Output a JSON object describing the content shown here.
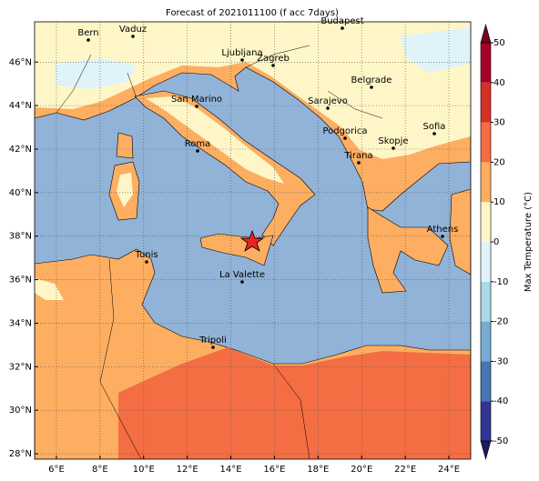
{
  "chart_data": {
    "type": "map",
    "title": "Forecast of 2021011100 (f acc 7days)",
    "xlim": [
      5,
      25
    ],
    "ylim": [
      27.75,
      47.85
    ],
    "xticks": [
      {
        "value": 6,
        "label": "6°E"
      },
      {
        "value": 8,
        "label": "8°E"
      },
      {
        "value": 10,
        "label": "10°E"
      },
      {
        "value": 12,
        "label": "12°E"
      },
      {
        "value": 14,
        "label": "14°E"
      },
      {
        "value": 16,
        "label": "16°E"
      },
      {
        "value": 18,
        "label": "18°E"
      },
      {
        "value": 20,
        "label": "20°E"
      },
      {
        "value": 22,
        "label": "22°E"
      },
      {
        "value": 24,
        "label": "24°E"
      }
    ],
    "yticks": [
      {
        "value": 28,
        "label": "28°N"
      },
      {
        "value": 30,
        "label": "30°N"
      },
      {
        "value": 32,
        "label": "32°N"
      },
      {
        "value": 34,
        "label": "34°N"
      },
      {
        "value": 36,
        "label": "36°N"
      },
      {
        "value": 38,
        "label": "38°N"
      },
      {
        "value": 40,
        "label": "40°N"
      },
      {
        "value": 42,
        "label": "42°N"
      },
      {
        "value": 44,
        "label": "44°N"
      },
      {
        "value": 46,
        "label": "46°N"
      }
    ],
    "grid": true,
    "cities": [
      "Bern",
      "Vaduz",
      "Budapest",
      "Ljubljana",
      "Zagreb",
      "Belgrade",
      "San Marino",
      "Sarajevo",
      "Sofia",
      "Podgorica",
      "Skopje",
      "Roma",
      "Tirana",
      "Athens",
      "Tunis",
      "La Valette",
      "Tripoli"
    ],
    "colorbar": {
      "label": "Max Temperature (°C)",
      "levels": [
        -50,
        -40,
        -30,
        -20,
        -10,
        0,
        10,
        20,
        30,
        40,
        50
      ],
      "colors": [
        "#313695",
        "#4575b4",
        "#74add1",
        "#abd9e9",
        "#e0f3f8",
        "#fef6c7",
        "#fdae61",
        "#f46d43",
        "#d73027",
        "#a50026"
      ],
      "under_color": "#1a1a5e",
      "over_color": "#7a0020"
    }
  }
}
